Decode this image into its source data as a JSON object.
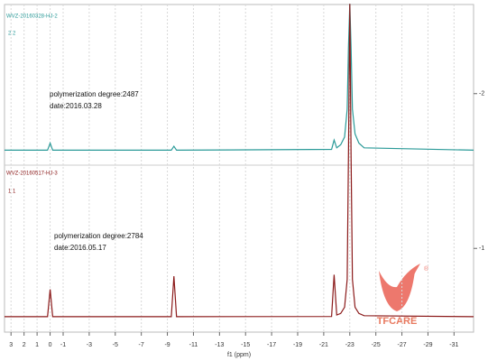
{
  "chart_data": {
    "type": "line",
    "x_label": "f1 (ppm)",
    "x": [
      3.5,
      0.2,
      0,
      -0.2,
      -9.3,
      -9.5,
      -9.7,
      -21.6,
      -21.8,
      -22.0,
      -22.3,
      -22.6,
      -22.8,
      -22.9,
      -23.0,
      -23.1,
      -23.2,
      -23.4,
      -23.7,
      -24.1,
      -32.5
    ],
    "series": [
      {
        "name": "WVZ-20160328-HJ-2",
        "color": "#2a9a98",
        "values": [
          -1.635,
          -1.635,
          -1.68,
          -1.635,
          -1.635,
          -1.66,
          -1.635,
          -1.64,
          -1.7,
          -1.65,
          -1.67,
          -1.72,
          -1.9,
          -2.3,
          -2.58,
          -2.3,
          -1.9,
          -1.74,
          -1.68,
          -1.65,
          -1.635
        ]
      },
      {
        "name": "WVZ-20160517-HJ-3",
        "color": "#8b1a1a",
        "values": [
          -0.559,
          -0.559,
          -0.735,
          -0.559,
          -0.559,
          -0.82,
          -0.559,
          -0.56,
          -0.83,
          -0.57,
          -0.58,
          -0.62,
          -0.8,
          -1.6,
          -2.58,
          -1.6,
          -0.8,
          -0.62,
          -0.58,
          -0.565,
          -0.559
        ]
      }
    ],
    "annotations": [
      "2 2",
      "polymerization degree:2487",
      "date:2016.03.28",
      "1 1",
      "polymerization degree:2784",
      "date:2016.05.17"
    ],
    "logo": "TFCARE",
    "xlim": [
      3.5,
      -32.5
    ],
    "xticks": [
      3,
      2,
      1,
      0,
      -1,
      -3,
      -5,
      -7,
      -9,
      -11,
      -13,
      -15,
      -17,
      -19,
      -21,
      -23,
      -25,
      -27,
      -29,
      -31
    ],
    "ylim": [
      -0.459,
      -2.576
    ],
    "yticks": [
      -2,
      -1
    ],
    "grid": true
  }
}
